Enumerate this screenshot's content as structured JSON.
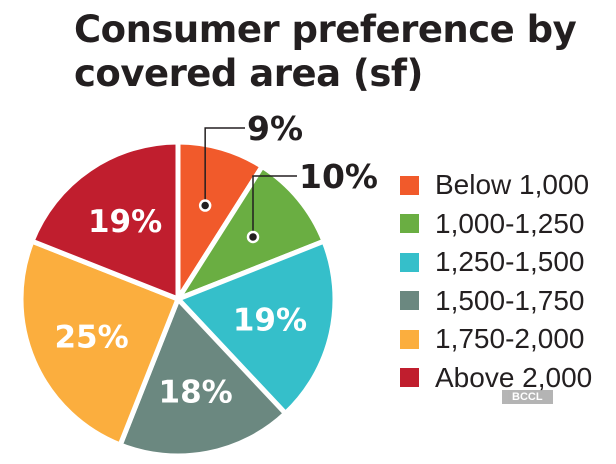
{
  "chart_data": {
    "type": "pie",
    "title": "Consumer preference by covered area (sf)",
    "title_lines": [
      "Consumer preference by",
      "covered area (sf)"
    ],
    "categories": [
      "Below 1,000",
      "1,000-1,250",
      "1,250-1,500",
      "1,500-1,750",
      "1,750-2,000",
      "Above 2,000"
    ],
    "values": [
      9,
      10,
      19,
      18,
      25,
      19
    ],
    "labels": [
      "9%",
      "10%",
      "19%",
      "18%",
      "25%",
      "19%"
    ],
    "colors": [
      "#f15a2b",
      "#6aae42",
      "#35bfca",
      "#6b8880",
      "#fbae3e",
      "#c01e2e"
    ],
    "legend": "right",
    "start": "top, clockwise"
  },
  "watermark": "BCCL"
}
